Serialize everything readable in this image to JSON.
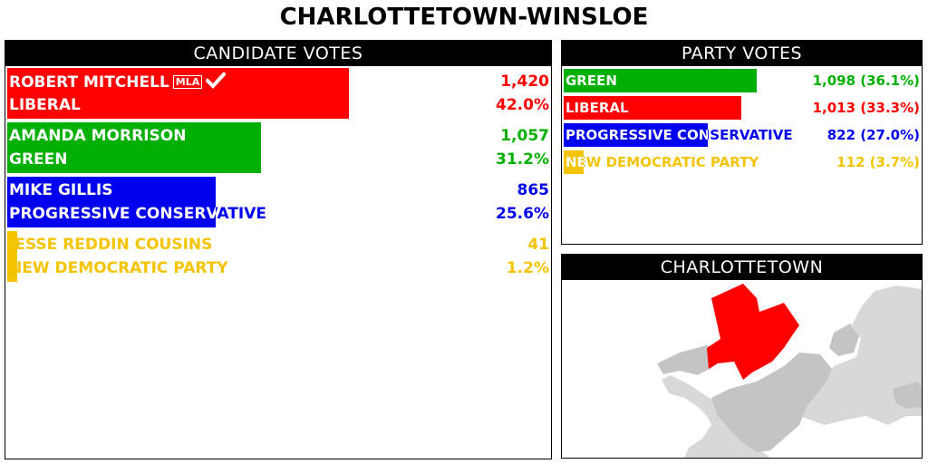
{
  "title": "CHARLOTTETOWN-WINSLOE",
  "candidate_panel": {
    "header": "CANDIDATE VOTES"
  },
  "party_panel": {
    "header": "PARTY VOTES"
  },
  "map_panel": {
    "header": "CHARLOTTETOWN"
  },
  "colors": {
    "liberal": "#ff0000",
    "green": "#00b000",
    "pc": "#0000ee",
    "ndp": "#f5c400"
  },
  "chart_data": [
    {
      "type": "bar",
      "title": "CANDIDATE VOTES",
      "candidates": [
        {
          "name": "ROBERT MITCHELL",
          "badge": "MLA",
          "elected": true,
          "party": "LIBERAL",
          "votes": 1420,
          "votes_label": "1,420",
          "pct": 42.0,
          "pct_label": "42.0%",
          "color": "#ff0000"
        },
        {
          "name": "AMANDA MORRISON",
          "party": "GREEN",
          "votes": 1057,
          "votes_label": "1,057",
          "pct": 31.2,
          "pct_label": "31.2%",
          "color": "#00b000"
        },
        {
          "name": "MIKE GILLIS",
          "party": "PROGRESSIVE CONSERVATIVE",
          "votes": 865,
          "votes_label": "865",
          "pct": 25.6,
          "pct_label": "25.6%",
          "color": "#0000ee"
        },
        {
          "name": "JESSE REDDIN COUSINS",
          "party": "NEW DEMOCRATIC PARTY",
          "votes": 41,
          "votes_label": "41",
          "pct": 1.2,
          "pct_label": "1.2%",
          "color": "#f5c400"
        }
      ]
    },
    {
      "type": "bar",
      "title": "PARTY VOTES",
      "parties": [
        {
          "name": "GREEN",
          "votes": 1098,
          "pct": 36.1,
          "label": "1,098 (36.1%)",
          "color": "#00b000"
        },
        {
          "name": "LIBERAL",
          "votes": 1013,
          "pct": 33.3,
          "label": "1,013 (33.3%)",
          "color": "#ff0000"
        },
        {
          "name": "PROGRESSIVE CONSERVATIVE",
          "votes": 822,
          "pct": 27.0,
          "label": "822 (27.0%)",
          "color": "#0000ee"
        },
        {
          "name": "NEW DEMOCRATIC PARTY",
          "votes": 112,
          "pct": 3.7,
          "label": "112 (3.7%)",
          "color": "#f5c400"
        }
      ]
    }
  ]
}
